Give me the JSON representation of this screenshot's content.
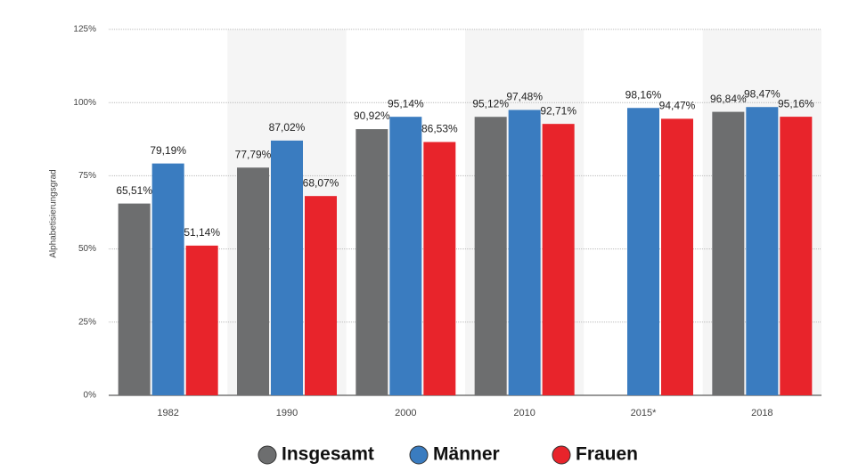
{
  "chart_data": {
    "type": "bar",
    "y_label": "Alphabetisierungsgrad",
    "categories": [
      "1982",
      "1990",
      "2000",
      "2010",
      "2015*",
      "2018"
    ],
    "series": [
      {
        "name": "Insgesamt",
        "color": "#6d6e6f",
        "values": [
          65.51,
          77.79,
          90.92,
          95.12,
          null,
          96.84
        ],
        "value_labels": [
          "65,51%",
          "77,79%",
          "90,92%",
          "95,12%",
          null,
          "96,84%"
        ]
      },
      {
        "name": "Männer",
        "color": "#3a7cc0",
        "values": [
          79.19,
          87.02,
          95.14,
          97.48,
          98.16,
          98.47
        ],
        "value_labels": [
          "79,19%",
          "87,02%",
          "95,14%",
          "97,48%",
          "98,16%",
          "98,47%"
        ]
      },
      {
        "name": "Frauen",
        "color": "#e8242b",
        "values": [
          51.14,
          68.07,
          86.53,
          92.71,
          94.47,
          95.16
        ],
        "value_labels": [
          "51,14%",
          "68,07%",
          "86,53%",
          "92,71%",
          "94,47%",
          "95,16%"
        ]
      }
    ],
    "ylim": [
      0,
      125
    ],
    "yticks": [
      {
        "value": 0,
        "label": "0%"
      },
      {
        "value": 25,
        "label": "25%"
      },
      {
        "value": 50,
        "label": "50%"
      },
      {
        "value": 75,
        "label": "75%"
      },
      {
        "value": 100,
        "label": "100%"
      },
      {
        "value": 125,
        "label": "125%"
      }
    ],
    "grid": true,
    "legend": "bottom"
  }
}
